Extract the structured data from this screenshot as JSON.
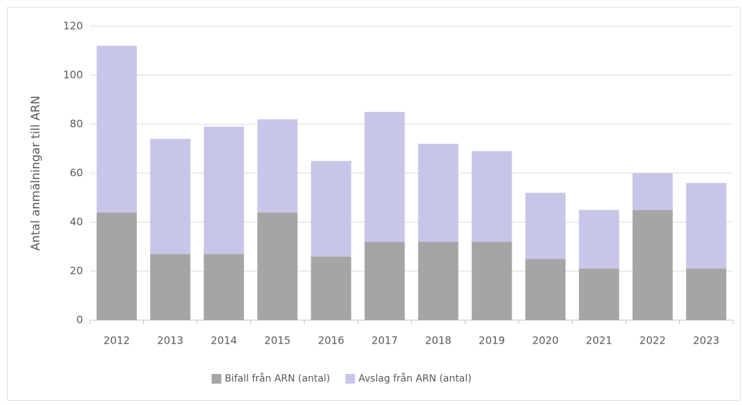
{
  "chart_data": {
    "type": "stacked_bar",
    "y_axis_label": "Antal anmälningar till ARN",
    "categories": [
      "2012",
      "2013",
      "2014",
      "2015",
      "2016",
      "2017",
      "2018",
      "2019",
      "2020",
      "2021",
      "2022",
      "2023"
    ],
    "series": [
      {
        "name": "Bifall från ARN (antal)",
        "color": "#a5a5a5",
        "values": [
          44,
          27,
          27,
          44,
          26,
          32,
          32,
          32,
          25,
          21,
          45,
          21
        ]
      },
      {
        "name": "Avslag från ARN (antal)",
        "color": "#c8c6e8",
        "values": [
          68,
          47,
          52,
          38,
          39,
          53,
          40,
          37,
          27,
          24,
          15,
          35
        ]
      }
    ],
    "ylim": [
      0,
      120
    ],
    "yticks": [
      0,
      20,
      40,
      60,
      80,
      100,
      120
    ],
    "grid": true,
    "legend": "bottom"
  }
}
